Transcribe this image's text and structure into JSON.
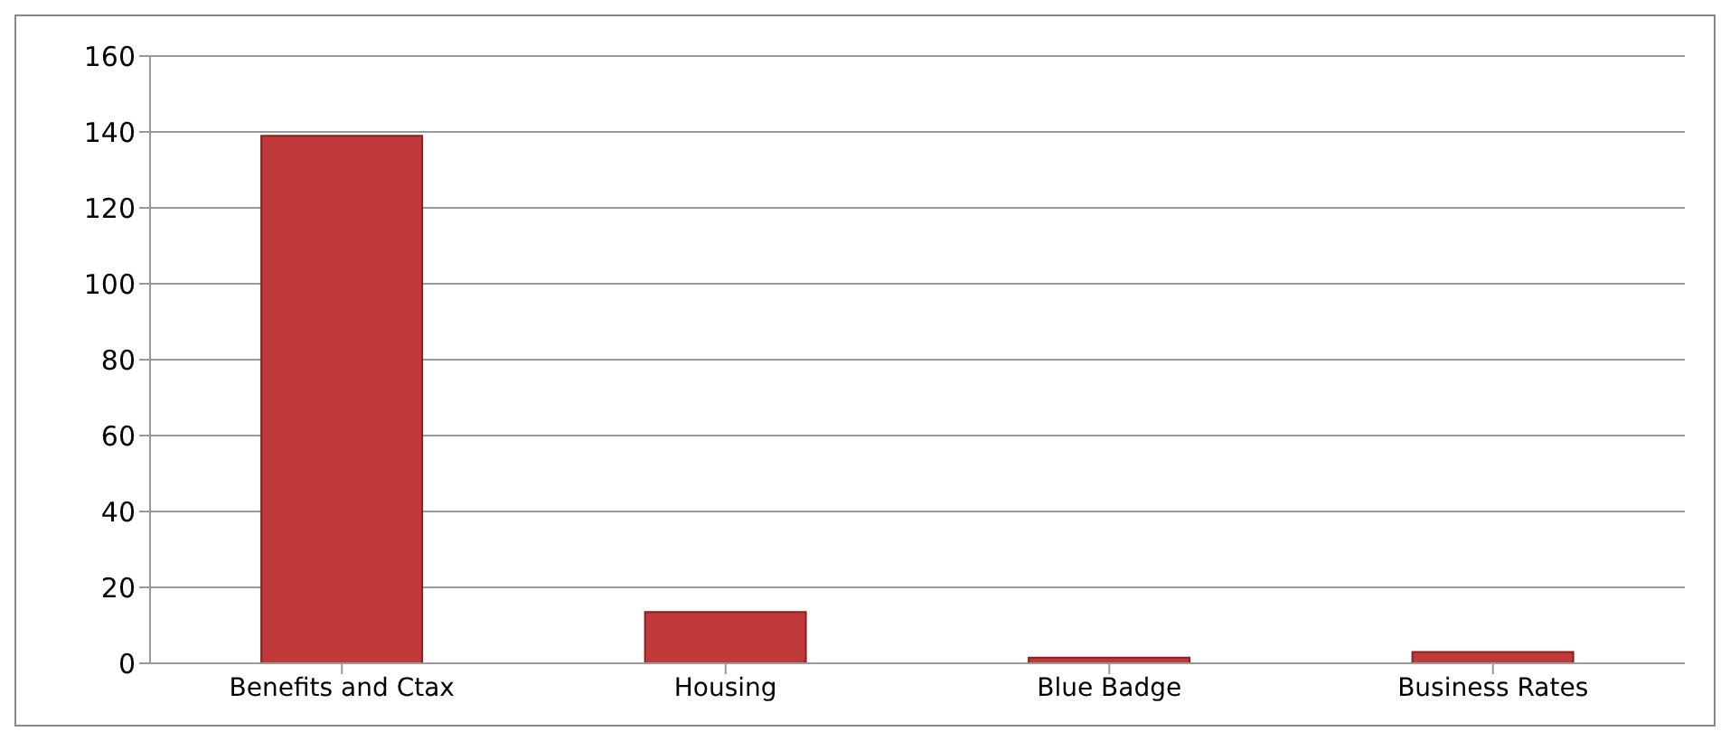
{
  "chart_data": {
    "type": "bar",
    "categories": [
      "Benefits and Ctax",
      "Housing",
      "Blue Badge",
      "Business Rates"
    ],
    "values": [
      139,
      13.5,
      1.5,
      3
    ],
    "color": "#c0393b",
    "ylim": [
      0,
      160
    ],
    "yticks": [
      0,
      20,
      40,
      60,
      80,
      100,
      120,
      140,
      160
    ],
    "grid": "y",
    "legend": false
  }
}
